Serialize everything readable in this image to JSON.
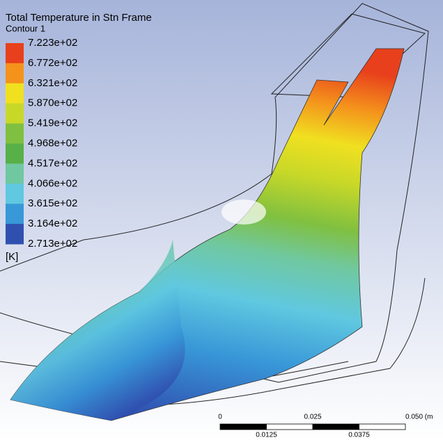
{
  "title": "Total Temperature in Stn Frame",
  "subtitle": "Contour 1",
  "legend": {
    "labels": [
      "7.223e+02",
      "6.772e+02",
      "6.321e+02",
      "5.870e+02",
      "5.419e+02",
      "4.968e+02",
      "4.517e+02",
      "4.066e+02",
      "3.615e+02",
      "3.164e+02",
      "2.713e+02"
    ],
    "unit": "[K]"
  },
  "scale_bar": {
    "top_labels": [
      "0",
      "0.025",
      "0.050 (m"
    ],
    "bottom_labels": [
      "0.0125",
      "0.0375"
    ]
  }
}
